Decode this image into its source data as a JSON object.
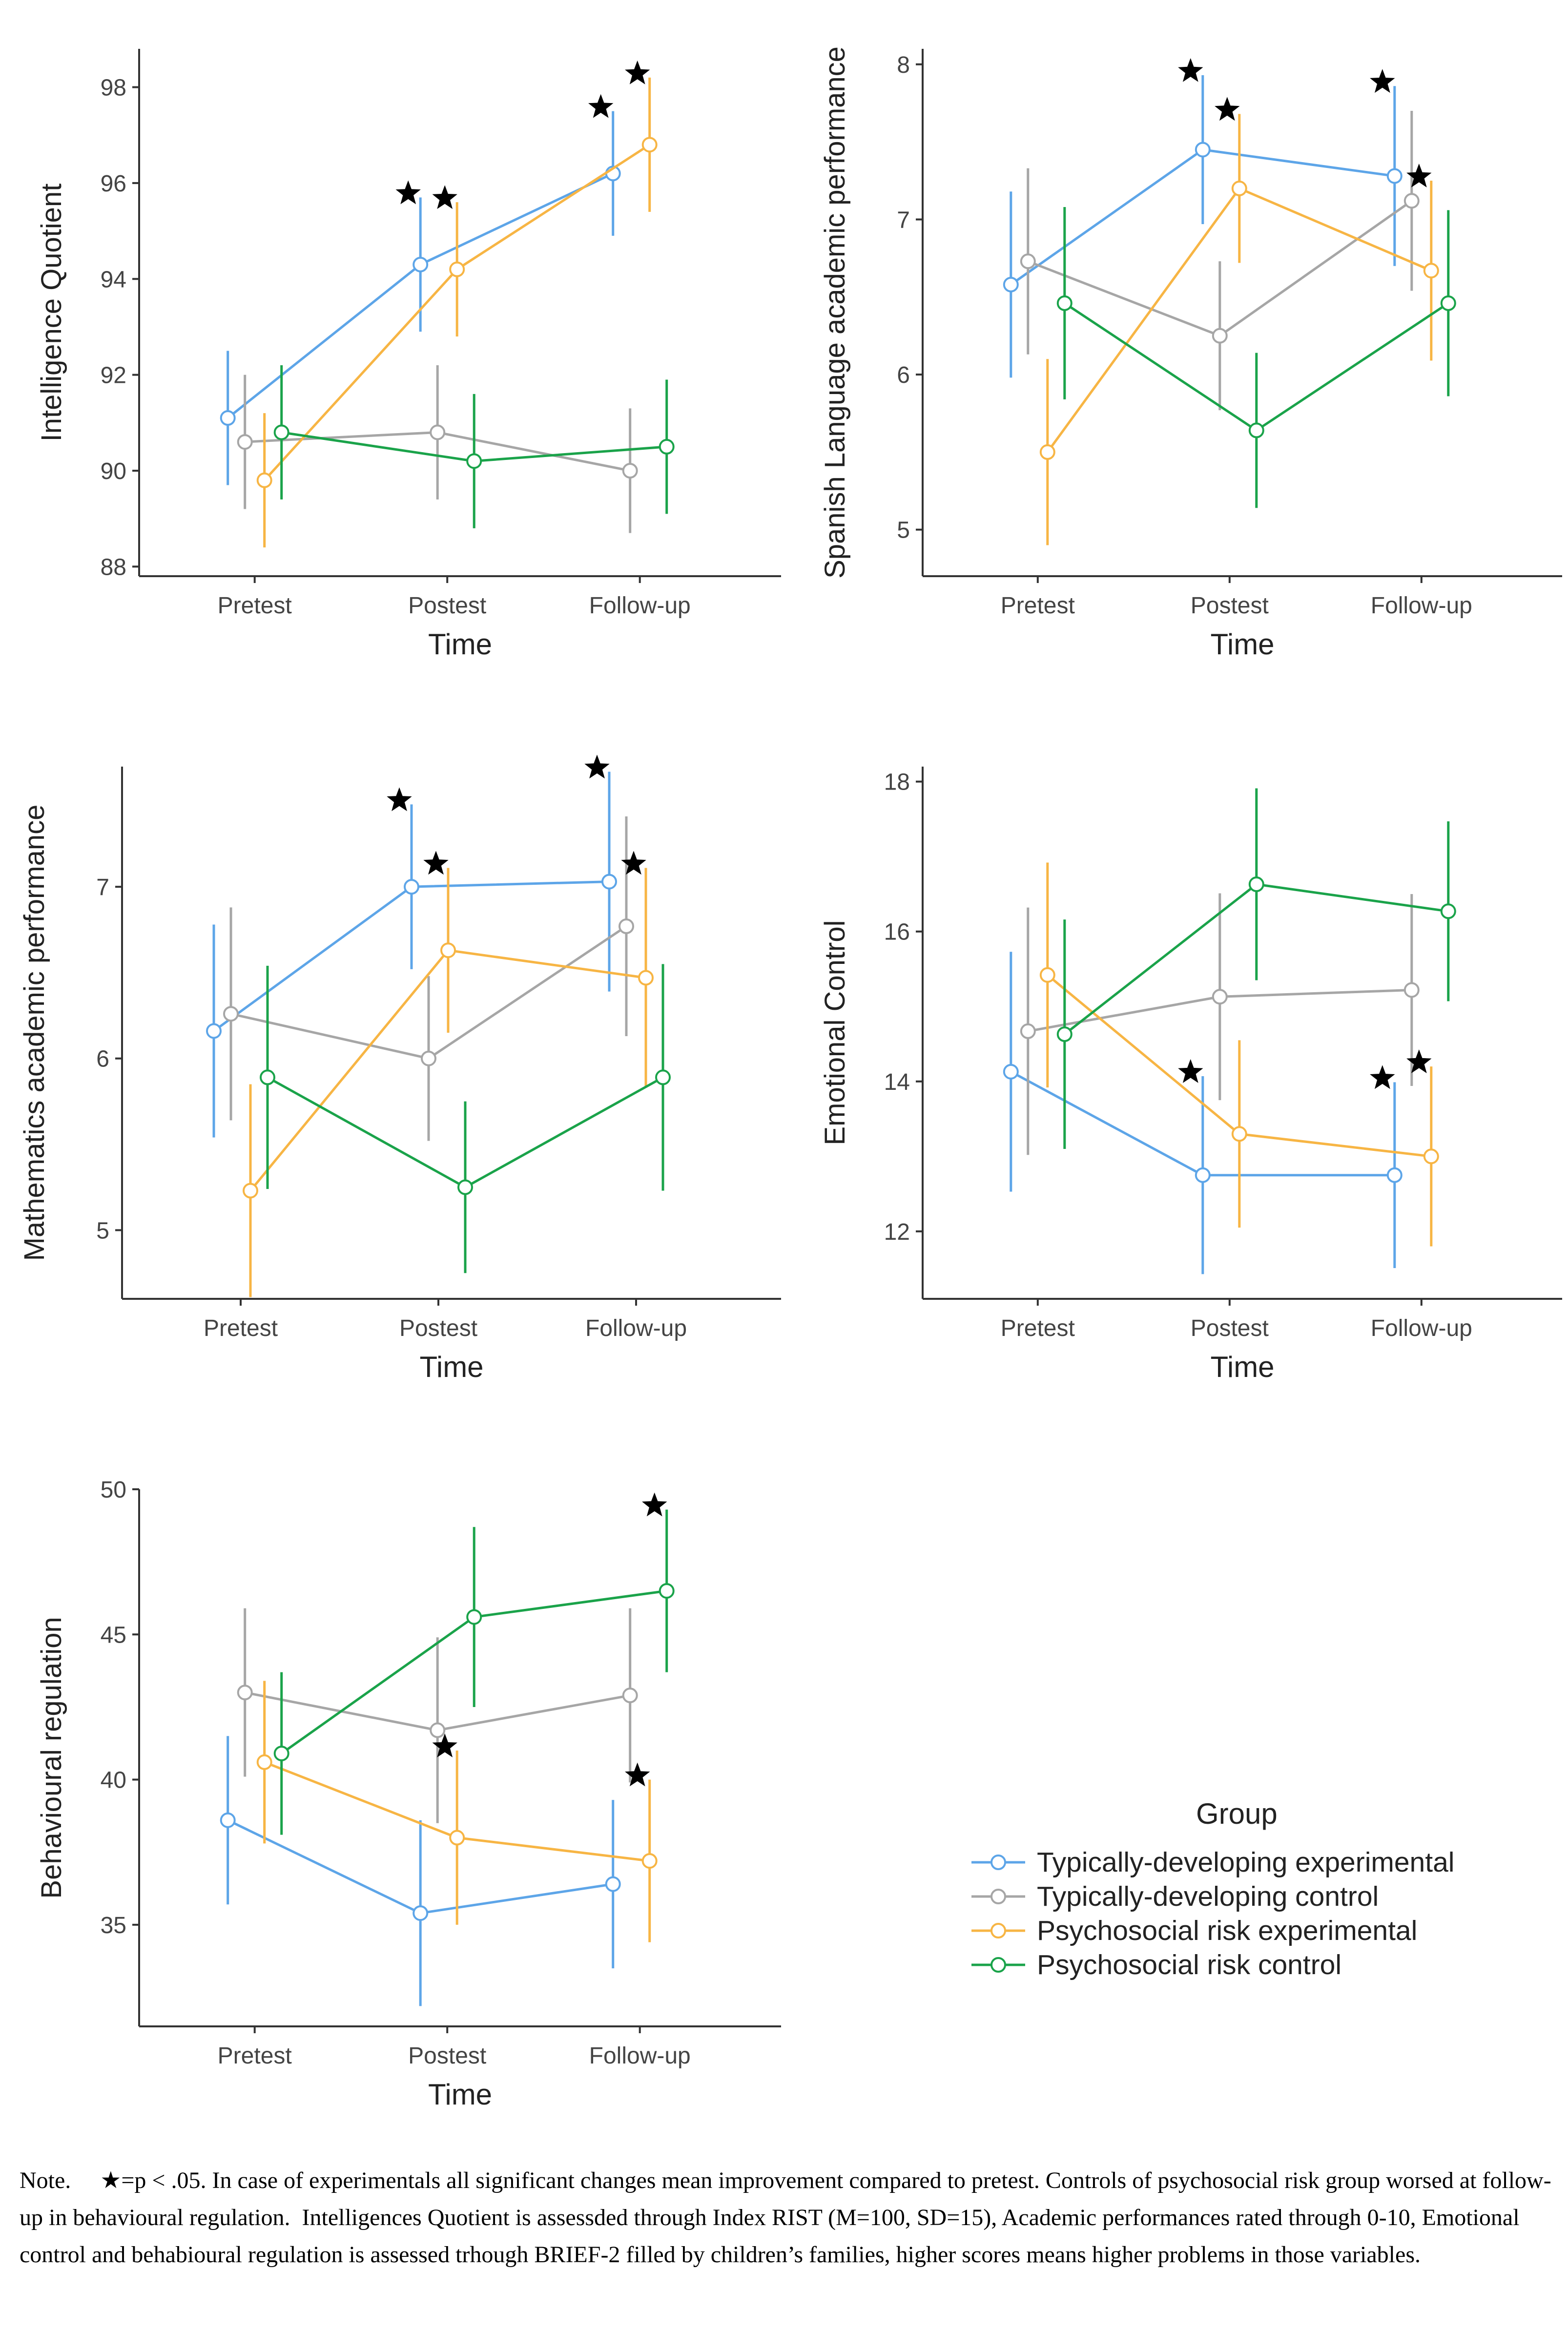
{
  "colors": {
    "Typically-developing experimental": "#5DA5E8",
    "Typically-developing control": "#A6A6A6",
    "Psychosocial risk experimental": "#F7B544",
    "Psychosocial risk control": "#1AA34A"
  },
  "chart_data": [
    {
      "type": "line",
      "title": "",
      "xlabel": "Time",
      "ylabel": "Intelligence Quotient",
      "categories": [
        "Pretest",
        "Postest",
        "Follow-up"
      ],
      "ylim": [
        87.8,
        98.8
      ],
      "yticks": [
        88,
        90,
        92,
        94,
        96,
        98
      ],
      "grid": false,
      "series": [
        {
          "name": "Typically-developing experimental",
          "values": [
            91.1,
            94.3,
            96.2
          ],
          "errors": [
            1.4,
            1.4,
            1.3
          ],
          "stars": [
            false,
            true,
            true
          ]
        },
        {
          "name": "Typically-developing control",
          "values": [
            90.6,
            90.8,
            90.0
          ],
          "errors": [
            1.4,
            1.4,
            1.3
          ],
          "stars": [
            false,
            false,
            false
          ]
        },
        {
          "name": "Psychosocial risk experimental",
          "values": [
            89.8,
            94.2,
            96.8
          ],
          "errors": [
            1.4,
            1.4,
            1.4
          ],
          "stars": [
            false,
            true,
            true
          ]
        },
        {
          "name": "Psychosocial risk control",
          "values": [
            90.8,
            90.2,
            90.5
          ],
          "errors": [
            1.4,
            1.4,
            1.4
          ],
          "stars": [
            false,
            false,
            false
          ]
        }
      ]
    },
    {
      "type": "line",
      "title": "",
      "xlabel": "Time",
      "ylabel": "Spanish Language academic performance",
      "categories": [
        "Pretest",
        "Postest",
        "Follow-up"
      ],
      "ylim": [
        4.7,
        8.1
      ],
      "yticks": [
        5,
        6,
        7,
        8
      ],
      "grid": false,
      "series": [
        {
          "name": "Typically-developing experimental",
          "values": [
            6.58,
            7.45,
            7.28
          ],
          "errors": [
            0.6,
            0.48,
            0.58
          ],
          "stars": [
            false,
            true,
            true
          ]
        },
        {
          "name": "Typically-developing control",
          "values": [
            6.73,
            6.25,
            7.12
          ],
          "errors": [
            0.6,
            0.48,
            0.58
          ],
          "stars": [
            false,
            false,
            false
          ]
        },
        {
          "name": "Psychosocial risk experimental",
          "values": [
            5.5,
            7.2,
            6.67
          ],
          "errors": [
            0.6,
            0.48,
            0.58
          ],
          "stars": [
            false,
            true,
            true
          ]
        },
        {
          "name": "Psychosocial risk control",
          "values": [
            6.46,
            5.64,
            6.46
          ],
          "errors": [
            0.62,
            0.5,
            0.6
          ],
          "stars": [
            false,
            false,
            false
          ]
        }
      ]
    },
    {
      "type": "line",
      "title": "",
      "xlabel": "Time",
      "ylabel": "Mathematics academic performance",
      "categories": [
        "Pretest",
        "Postest",
        "Follow-up"
      ],
      "ylim": [
        4.6,
        7.7
      ],
      "yticks": [
        5,
        6,
        7
      ],
      "grid": false,
      "series": [
        {
          "name": "Typically-developing experimental",
          "values": [
            6.16,
            7.0,
            7.03
          ],
          "errors": [
            0.62,
            0.48,
            0.64
          ],
          "stars": [
            false,
            true,
            true
          ]
        },
        {
          "name": "Typically-developing control",
          "values": [
            6.26,
            6.0,
            6.77
          ],
          "errors": [
            0.62,
            0.48,
            0.64
          ],
          "stars": [
            false,
            false,
            false
          ]
        },
        {
          "name": "Psychosocial risk experimental",
          "values": [
            5.23,
            6.63,
            6.47
          ],
          "errors": [
            0.62,
            0.48,
            0.64
          ],
          "stars": [
            false,
            true,
            true
          ]
        },
        {
          "name": "Psychosocial risk control",
          "values": [
            5.89,
            5.25,
            5.89
          ],
          "errors": [
            0.65,
            0.5,
            0.66
          ],
          "stars": [
            false,
            false,
            false
          ]
        }
      ]
    },
    {
      "type": "line",
      "title": "",
      "xlabel": "Time",
      "ylabel": "Emotional Control",
      "categories": [
        "Pretest",
        "Postest",
        "Follow-up"
      ],
      "ylim": [
        11.1,
        18.2
      ],
      "yticks": [
        12,
        14,
        16,
        18
      ],
      "grid": false,
      "series": [
        {
          "name": "Typically-developing experimental",
          "values": [
            14.13,
            12.75,
            12.75
          ],
          "errors": [
            1.6,
            1.32,
            1.24
          ],
          "stars": [
            false,
            true,
            true
          ]
        },
        {
          "name": "Typically-developing control",
          "values": [
            14.67,
            15.13,
            15.22
          ],
          "errors": [
            1.65,
            1.38,
            1.28
          ],
          "stars": [
            false,
            false,
            false
          ]
        },
        {
          "name": "Psychosocial risk experimental",
          "values": [
            15.42,
            13.3,
            13.0
          ],
          "errors": [
            1.5,
            1.25,
            1.2
          ],
          "stars": [
            false,
            false,
            true
          ]
        },
        {
          "name": "Psychosocial risk control",
          "values": [
            14.63,
            16.63,
            16.27
          ],
          "errors": [
            1.53,
            1.28,
            1.2
          ],
          "stars": [
            false,
            false,
            false
          ]
        }
      ]
    },
    {
      "type": "line",
      "title": "",
      "xlabel": "Time",
      "ylabel": "Behavioural regulation",
      "categories": [
        "Pretest",
        "Postest",
        "Follow-up"
      ],
      "ylim": [
        31.5,
        50.0
      ],
      "yticks": [
        35,
        40,
        45,
        50
      ],
      "grid": false,
      "series": [
        {
          "name": "Typically-developing experimental",
          "values": [
            38.6,
            35.4,
            36.4
          ],
          "errors": [
            2.9,
            3.2,
            2.9
          ],
          "stars": [
            false,
            false,
            false
          ]
        },
        {
          "name": "Typically-developing control",
          "values": [
            43.0,
            41.7,
            42.9
          ],
          "errors": [
            2.9,
            3.2,
            3.0
          ],
          "stars": [
            false,
            false,
            false
          ]
        },
        {
          "name": "Psychosocial risk experimental",
          "values": [
            40.6,
            38.0,
            37.2
          ],
          "errors": [
            2.8,
            3.0,
            2.8
          ],
          "stars": [
            false,
            true,
            true
          ]
        },
        {
          "name": "Psychosocial risk control",
          "values": [
            40.9,
            45.6,
            46.5
          ],
          "errors": [
            2.8,
            3.1,
            2.8
          ],
          "stars": [
            false,
            false,
            true
          ]
        }
      ]
    }
  ],
  "legend": {
    "title": "Group",
    "items": [
      "Typically-developing experimental",
      "Typically-developing control",
      "Psychosocial risk experimental",
      "Psychosocial risk control"
    ]
  },
  "note": {
    "label": "Note.",
    "star_sig_text": "=p < .05.",
    "text": "In case of experimentals all significant changes mean improvement compared to pretest. Controls of psychosocial risk group worsed at follow-up in behavioural regulation.  Intelligences Quotient is assessded through Index RIST (M=100, SD=15), Academic performances rated through 0-10, Emotional control and behabioural regulation is assessed trhough BRIEF-2 filled by children’s families, higher scores means higher problems in those variables."
  }
}
